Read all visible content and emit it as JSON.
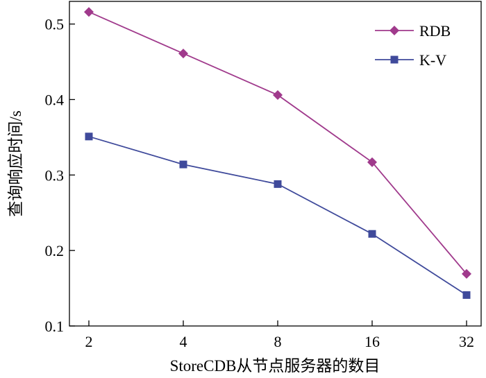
{
  "chart_data": {
    "type": "line",
    "x_ticks": [
      "2",
      "4",
      "8",
      "16",
      "32"
    ],
    "y_ticks": [
      "0.1",
      "0.2",
      "0.3",
      "0.4",
      "0.5"
    ],
    "ylim": [
      0.1,
      0.53
    ],
    "xlabel": "StoreCDB从节点服务器的数目",
    "ylabel": "查询响应时间/s",
    "legend_position": "top-right",
    "grid": false,
    "series": [
      {
        "name": "RDB",
        "marker": "diamond",
        "color": "#a03a8c",
        "values": [
          0.516,
          0.461,
          0.406,
          0.317,
          0.169
        ]
      },
      {
        "name": "K-V",
        "marker": "square",
        "color": "#3f4a9b",
        "values": [
          0.351,
          0.314,
          0.288,
          0.222,
          0.141
        ]
      }
    ]
  }
}
